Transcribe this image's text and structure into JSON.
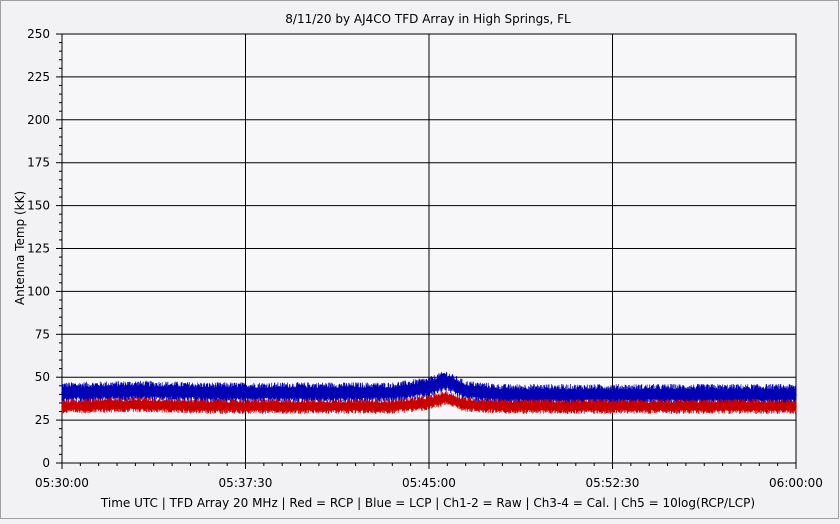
{
  "chart_data": {
    "type": "line",
    "title": "8/11/20  by  AJ4CO TFD Array  in  High Springs, FL",
    "ylabel": "Antenna Temp (kK)",
    "footer": "Time UTC | TFD Array 20 MHz | Red = RCP | Blue = LCP | Ch1-2 = Raw | Ch3-4 = Cal. | Ch5 = 10log(RCP/LCP)",
    "ylim": [
      0,
      250
    ],
    "yticks": [
      "0",
      "25",
      "50",
      "75",
      "100",
      "125",
      "150",
      "175",
      "200",
      "225",
      "250"
    ],
    "xlim": [
      "05:30:00",
      "06:00:00"
    ],
    "xticks": [
      "05:30:00",
      "05:37:30",
      "05:45:00",
      "05:52:30",
      "06:00:00"
    ],
    "grid": true,
    "legend": "none",
    "series": [
      {
        "color": "#0000b4",
        "x": [
          "05:30:00",
          "05:33:00",
          "05:36:00",
          "05:40:00",
          "05:43:30",
          "05:45:00",
          "05:45:40",
          "05:46:30",
          "05:48:00",
          "05:52:00",
          "05:56:00",
          "06:00:00"
        ],
        "values": [
          41,
          42,
          41,
          41,
          41,
          44,
          48,
          42,
          40,
          40,
          40,
          40
        ],
        "band": [
          36,
          47
        ]
      },
      {
        "color": "#c80000",
        "x": [
          "05:30:00",
          "05:33:00",
          "05:36:00",
          "05:40:00",
          "05:43:30",
          "05:45:00",
          "05:45:40",
          "05:46:30",
          "05:48:00",
          "05:52:00",
          "05:56:00",
          "06:00:00"
        ],
        "values": [
          33,
          34,
          33,
          33,
          33,
          35,
          38,
          34,
          33,
          33,
          33,
          33
        ],
        "band": [
          29,
          37
        ]
      }
    ]
  }
}
